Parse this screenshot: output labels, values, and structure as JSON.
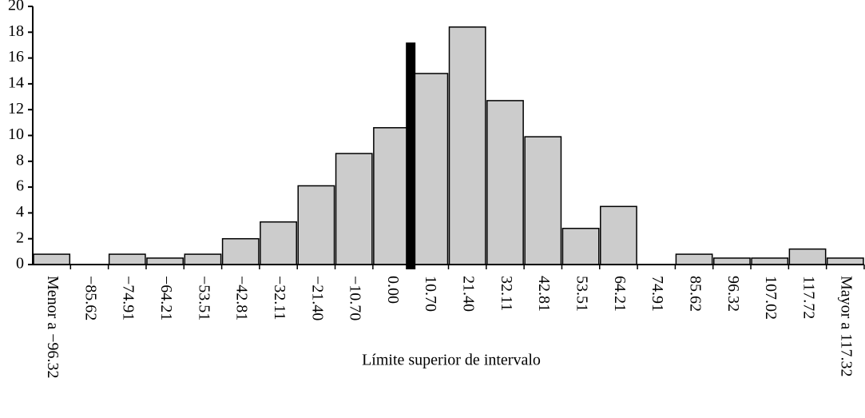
{
  "chart_data": {
    "type": "bar",
    "x_label": "Límite superior de intervalo",
    "categories": [
      "Menor a −96.32",
      "−85.62",
      "−74.91",
      "−64.21",
      "−53.51",
      "−42.81",
      "−32.11",
      "−21.40",
      "−10.70",
      "0.00",
      "10.70",
      "21.40",
      "32.11",
      "42.81",
      "53.51",
      "64.21",
      "74.91",
      "85.62",
      "96.32",
      "107.02",
      "117.72",
      "Mayor a 117.32"
    ],
    "values": [
      0.8,
      0,
      0.8,
      0.5,
      0.8,
      2.0,
      3.3,
      6.1,
      8.6,
      10.6,
      14.8,
      18.4,
      12.7,
      9.9,
      2.8,
      4.5,
      0,
      0.8,
      0.5,
      0.5,
      1.2,
      0.5
    ],
    "color": "#cccccc",
    "reference_line": {
      "category": "0.00",
      "value": 17.2,
      "color": "#000000"
    },
    "ylim": [
      0,
      20
    ],
    "yticks": [
      0,
      2,
      4,
      6,
      8,
      10,
      12,
      14,
      16,
      18,
      20
    ]
  }
}
